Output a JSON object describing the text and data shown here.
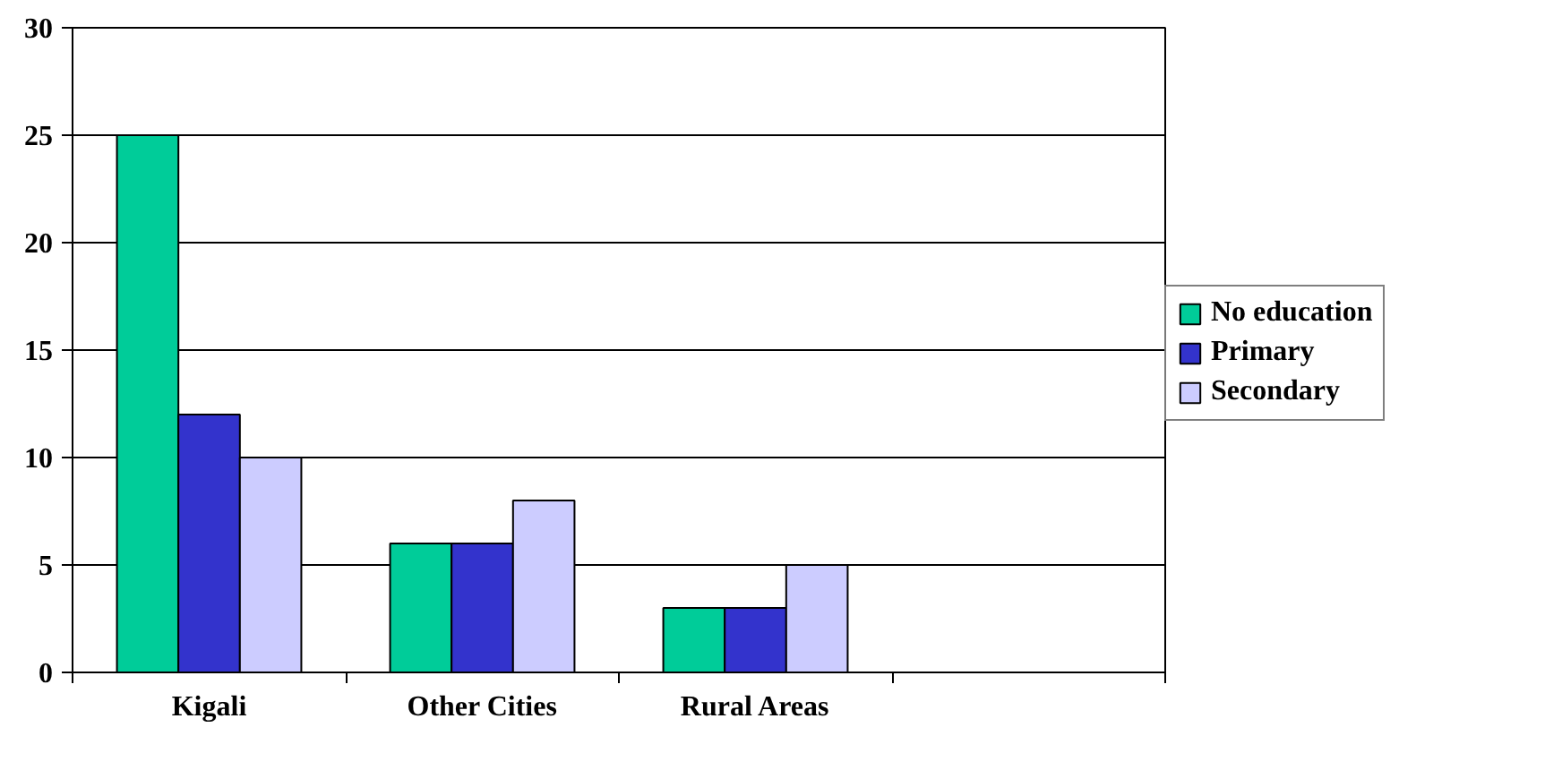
{
  "chart_data": {
    "type": "bar",
    "categories": [
      "Kigali",
      "Other Cities",
      "Rural Areas",
      null
    ],
    "series": [
      {
        "name": "No education",
        "color": "#00cc99",
        "values": [
          25,
          6,
          3,
          null
        ]
      },
      {
        "name": "Primary",
        "color": "#3333cc",
        "values": [
          12,
          6,
          3,
          null
        ]
      },
      {
        "name": "Secondary",
        "color": "#ccccff",
        "values": [
          10,
          8,
          5,
          null
        ]
      }
    ],
    "ylim": [
      0,
      30
    ],
    "yticks": [
      0,
      5,
      10,
      15,
      20,
      25,
      30
    ],
    "grid": "y",
    "legend": "right"
  }
}
